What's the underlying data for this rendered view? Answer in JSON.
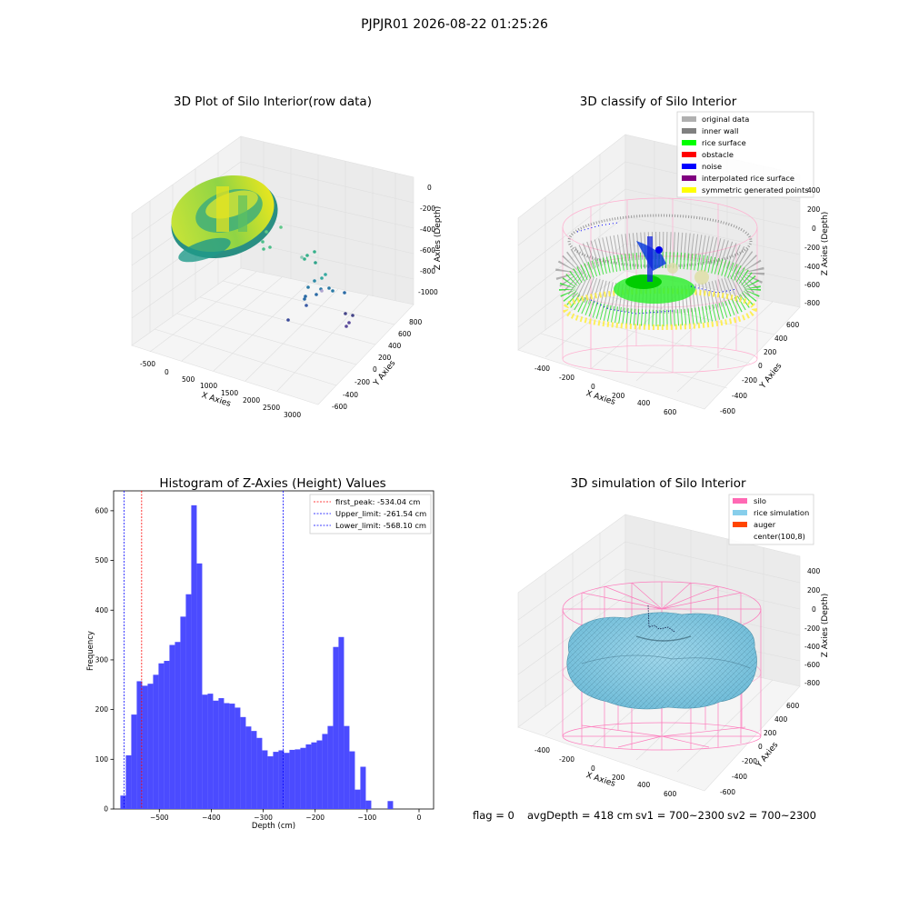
{
  "figure": {
    "suptitle": "PJPJR01 2026-08-22 01:25:26",
    "status_line": {
      "flag": "flag = 0",
      "avg_depth": "avgDepth = 418 cm",
      "sv1": "sv1 = 700~2300",
      "sv2": "sv2 = 700~2300"
    }
  },
  "chart_data": [
    {
      "type": "scatter",
      "panel": "top-left",
      "title": "3D Plot of Silo Interior(row data)",
      "xlabel": "X Axies",
      "ylabel": "Y Axies",
      "zlabel": "Z Axies (Depth)",
      "x_ticks": [
        "-500",
        "0",
        "500",
        "1000",
        "1500",
        "2000",
        "2500",
        "3000"
      ],
      "y_ticks": [
        "-600",
        "-400",
        "-200",
        "0",
        "200",
        "400",
        "600",
        "800"
      ],
      "z_ticks": [
        "0",
        "-200",
        "-400",
        "-600",
        "-800",
        "-1000"
      ],
      "colormap": [
        "#440154",
        "#31688e",
        "#35b779",
        "#b5de2b",
        "#fde725"
      ]
    },
    {
      "type": "scatter",
      "panel": "top-right",
      "title": "3D classify of Silo Interior",
      "xlabel": "X Axies",
      "ylabel": "Y Axies",
      "zlabel": "Z Axies (Depth)",
      "x_ticks": [
        "-400",
        "-200",
        "0",
        "200",
        "400",
        "600"
      ],
      "y_ticks": [
        "-600",
        "-400",
        "-200",
        "0",
        "200",
        "400",
        "600"
      ],
      "z_ticks": [
        "400",
        "200",
        "0",
        "-200",
        "-400",
        "-600",
        "-800"
      ],
      "legend_position": "top-right",
      "legend": [
        {
          "label": "original data",
          "color": "#b0b0b0"
        },
        {
          "label": "inner wall",
          "color": "#808080"
        },
        {
          "label": "rice surface",
          "color": "#00ff00"
        },
        {
          "label": "obstacle",
          "color": "#ff0000"
        },
        {
          "label": "noise",
          "color": "#0000ff"
        },
        {
          "label": "interpolated rice surface",
          "color": "#800080"
        },
        {
          "label": "symmetric generated points",
          "color": "#ffff00"
        }
      ]
    },
    {
      "type": "bar",
      "panel": "bottom-left",
      "title": "Histogram of Z-Axies (Height) Values",
      "xlabel": "Depth (cm)",
      "ylabel": "Frequency",
      "xlim": [
        -588,
        28
      ],
      "ylim": [
        0,
        640
      ],
      "bin_width": 10.5,
      "bin_start": -575,
      "values": [
        27,
        108,
        190,
        257,
        248,
        252,
        270,
        293,
        298,
        330,
        336,
        387,
        432,
        611,
        494,
        230,
        232,
        218,
        223,
        213,
        212,
        204,
        185,
        166,
        157,
        143,
        118,
        106,
        115,
        118,
        113,
        119,
        120,
        123,
        130,
        134,
        138,
        151,
        167,
        326,
        346,
        167,
        116,
        39,
        85,
        17,
        0,
        0,
        0,
        16
      ],
      "bar_color": "#4b4bff",
      "x_ticks": [
        -500,
        -400,
        -300,
        -200,
        -100,
        0
      ],
      "y_ticks": [
        0,
        100,
        200,
        300,
        400,
        500,
        600
      ],
      "legend_position": "top-right",
      "vlines": [
        {
          "label": "first_peak: -534.04 cm",
          "x": -534.04,
          "color": "#ff0000"
        },
        {
          "label": "Upper_limit: -261.54 cm",
          "x": -261.54,
          "color": "#0000ff"
        },
        {
          "label": "Lower_limit: -568.10 cm",
          "x": -568.1,
          "color": "#0000ff"
        }
      ]
    },
    {
      "type": "scatter",
      "panel": "bottom-right",
      "title": "3D simulation of Silo Interior",
      "xlabel": "X Axies",
      "ylabel": "Y Axies",
      "zlabel": "Z Axies (Depth)",
      "x_ticks": [
        "-400",
        "-200",
        "0",
        "200",
        "400",
        "600"
      ],
      "y_ticks": [
        "-600",
        "-400",
        "-200",
        "0",
        "200",
        "400",
        "600"
      ],
      "z_ticks": [
        "400",
        "200",
        "0",
        "-200",
        "-400",
        "-600",
        "-800"
      ],
      "legend_position": "top-right",
      "legend": [
        {
          "label": "silo",
          "color": "#ff69b4"
        },
        {
          "label": "rice simulation",
          "color": "#87ceeb"
        },
        {
          "label": "auger",
          "color": "#ff4500"
        },
        {
          "label": "center(100,8)",
          "color": "none"
        }
      ]
    }
  ]
}
